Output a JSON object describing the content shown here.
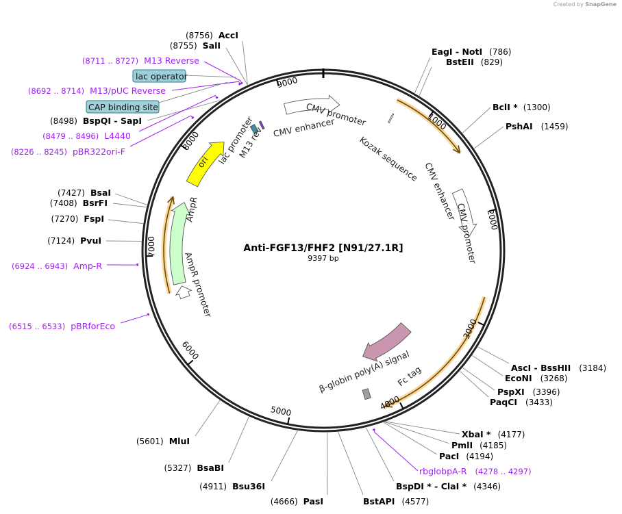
{
  "credit": {
    "text": "Created by",
    "brand": "SnapGene"
  },
  "plasmid": {
    "name": "Anti-FGF13/FHF2 [N91/27.1R]",
    "length_label": "9397 bp",
    "length_bp": 9397
  },
  "ticks": [
    "1000",
    "2000",
    "3000",
    "4000",
    "5000",
    "6000",
    "7000",
    "8000",
    "9000"
  ],
  "sites": [
    {
      "name": "AccI",
      "pos": 8756,
      "pos_label": "(8756)"
    },
    {
      "name": "SalI",
      "pos": 8755,
      "pos_label": "(8755)"
    },
    {
      "name": "BspQI  - SapI",
      "pos": 8498,
      "pos_label": "(8498)"
    },
    {
      "name": "BsaI",
      "pos": 7427,
      "pos_label": "(7427)"
    },
    {
      "name": "BsrFI",
      "pos": 7408,
      "pos_label": "(7408)"
    },
    {
      "name": "FspI",
      "pos": 7270,
      "pos_label": "(7270)"
    },
    {
      "name": "PvuI",
      "pos": 7124,
      "pos_label": "(7124)"
    },
    {
      "name": "MluI",
      "pos": 5601,
      "pos_label": "(5601)"
    },
    {
      "name": "BsaBI",
      "pos": 5327,
      "pos_label": "(5327)"
    },
    {
      "name": "Bsu36I",
      "pos": 4911,
      "pos_label": "(4911)"
    },
    {
      "name": "PasI",
      "pos": 4666,
      "pos_label": "(4666)"
    },
    {
      "name": "BstAPI",
      "pos": 4577,
      "pos_label": "(4577)"
    },
    {
      "name": "BspDI * - ClaI *",
      "pos": 4346,
      "pos_label": "(4346)"
    },
    {
      "name": "PacI",
      "pos": 4194,
      "pos_label": "(4194)"
    },
    {
      "name": "PmlI",
      "pos": 4185,
      "pos_label": "(4185)"
    },
    {
      "name": "XbaI *",
      "pos": 4177,
      "pos_label": "(4177)"
    },
    {
      "name": "PaqCI",
      "pos": 3433,
      "pos_label": "(3433)"
    },
    {
      "name": "PspXI",
      "pos": 3396,
      "pos_label": "(3396)"
    },
    {
      "name": "EcoNI",
      "pos": 3268,
      "pos_label": "(3268)"
    },
    {
      "name": "AscI  - BssHII",
      "pos": 3184,
      "pos_label": "(3184)"
    },
    {
      "name": "PshAI",
      "pos": 1459,
      "pos_label": "(1459)"
    },
    {
      "name": "BclI *",
      "pos": 1300,
      "pos_label": "(1300)"
    },
    {
      "name": "BstEII",
      "pos": 829,
      "pos_label": "(829)"
    },
    {
      "name": "EagI  - NotI",
      "pos": 786,
      "pos_label": "(786)"
    }
  ],
  "primers": [
    {
      "name": "M13 Reverse",
      "start": 8711,
      "end": 8727,
      "range": "(8711 .. 8727)"
    },
    {
      "name": "M13/pUC Reverse",
      "start": 8692,
      "end": 8714,
      "range": "(8692 .. 8714)"
    },
    {
      "name": "L4440",
      "start": 8479,
      "end": 8496,
      "range": "(8479 .. 8496)"
    },
    {
      "name": "pBR322ori-F",
      "start": 8226,
      "end": 8245,
      "range": "(8226 .. 8245)"
    },
    {
      "name": "Amp-R",
      "start": 6924,
      "end": 6943,
      "range": "(6924 .. 6943)"
    },
    {
      "name": "pBRforEco",
      "start": 6515,
      "end": 6533,
      "range": "(6515 .. 6533)"
    },
    {
      "name": "rbglobpA-R",
      "start": 4278,
      "end": 4297,
      "range": "(4278 .. 4297)"
    }
  ],
  "boxed_features": [
    {
      "name": "lac operator",
      "pos": 8670
    },
    {
      "name": "CAP binding site",
      "pos": 8590
    }
  ],
  "features": [
    {
      "name": "CMV enhancer",
      "label2": "CMV promoter",
      "start": 9005,
      "end": 167,
      "dir": 1,
      "color": "#ffffff"
    },
    {
      "name": "Kozak sequence",
      "start": 700,
      "end": 712,
      "dir": 0,
      "color": "#ffffff"
    },
    {
      "name": "",
      "start": 680,
      "end": 1420,
      "dir": 1,
      "color": "#f5b041"
    },
    {
      "name": "CMV enhancer",
      "label2": "CMV promoter",
      "start": 1725,
      "end": 2205,
      "dir": 1,
      "color": "#ffffff"
    },
    {
      "name": "",
      "start": 2770,
      "end": 4137,
      "dir": 1,
      "color": "#f5b041"
    },
    {
      "name": "Fc tag",
      "start": 3470,
      "end": 4166,
      "dir": 1,
      "color": "#c996b0"
    },
    {
      "name": "β-globin poly(A) signal",
      "start": 4232,
      "end": 4290,
      "dir": 0,
      "color": "#9aa0a8"
    },
    {
      "name": "ori",
      "start": 7750,
      "end": 8290,
      "dir": 1,
      "color": "#ffff00"
    },
    {
      "name": "AmpR",
      "start": 6710,
      "end": 7545,
      "dir": 1,
      "color": "#ccffcc"
    },
    {
      "name": "AmpR promoter",
      "start": 6560,
      "end": 6680,
      "dir": 1,
      "color": "#ffffff"
    },
    {
      "name": "",
      "start": 6640,
      "end": 7560,
      "dir": 1,
      "color": "#f5b041"
    },
    {
      "name": "lac promoter",
      "start": 8600,
      "end": 8650,
      "dir": 0,
      "color": "#3a8fa0"
    },
    {
      "name": "M13 rev",
      "start": 8705,
      "end": 8725,
      "dir": 0,
      "color": "#7b3fd0"
    }
  ]
}
